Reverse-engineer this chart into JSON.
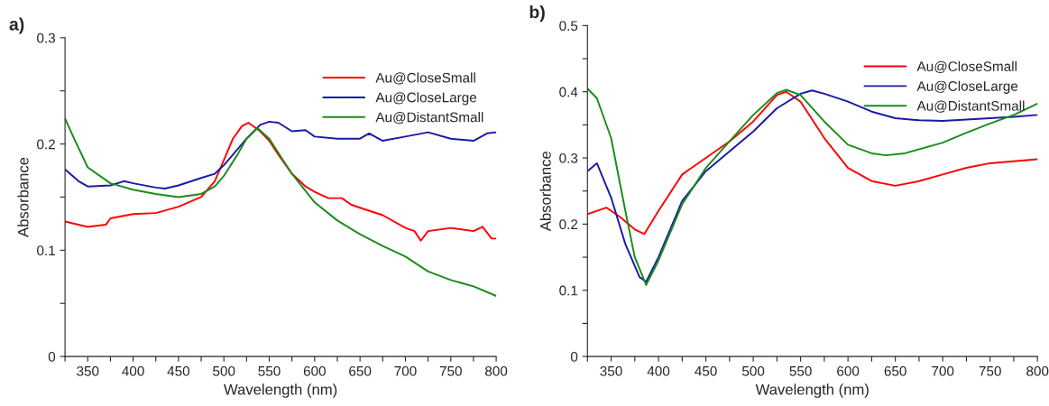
{
  "chart_data": [
    {
      "type": "line",
      "title": "a)",
      "xlabel": "Wavelength (nm)",
      "ylabel": "Absorbance",
      "xlim": [
        325,
        800
      ],
      "ylim": [
        0,
        0.3
      ],
      "xticks": [
        {
          "value": 325,
          "label": null
        },
        350,
        {
          "value": 375,
          "label": null
        },
        400,
        {
          "value": 425,
          "label": null
        },
        450,
        {
          "value": 475,
          "label": null
        },
        500,
        {
          "value": 525,
          "label": null
        },
        550,
        {
          "value": 575,
          "label": null
        },
        600,
        {
          "value": 625,
          "label": null
        },
        650,
        {
          "value": 675,
          "label": null
        },
        700,
        {
          "value": 725,
          "label": null
        },
        750,
        {
          "value": 775,
          "label": null
        },
        800
      ],
      "yticks": [
        0,
        {
          "value": 0.05,
          "label": null
        },
        0.1,
        {
          "value": 0.15,
          "label": null
        },
        0.2,
        {
          "value": 0.25,
          "label": null
        },
        0.3
      ],
      "grid": false,
      "legend": "top right",
      "line_style": "solid",
      "marker": "none",
      "series": [
        {
          "name": "Au@CloseSmall",
          "color": "#ff0000",
          "x": [
            325,
            350,
            370,
            375,
            400,
            425,
            450,
            475,
            490,
            500,
            510,
            520,
            527,
            540,
            550,
            560,
            575,
            590,
            600,
            615,
            630,
            640,
            650,
            675,
            700,
            710,
            717,
            725,
            750,
            775,
            785,
            795,
            800
          ],
          "values": [
            0.127,
            0.122,
            0.124,
            0.13,
            0.134,
            0.135,
            0.141,
            0.15,
            0.165,
            0.185,
            0.205,
            0.217,
            0.22,
            0.212,
            0.203,
            0.19,
            0.172,
            0.16,
            0.155,
            0.149,
            0.149,
            0.143,
            0.14,
            0.133,
            0.121,
            0.118,
            0.109,
            0.118,
            0.121,
            0.118,
            0.122,
            0.111,
            0.111
          ]
        },
        {
          "name": "Au@CloseLarge",
          "color": "#1a1aa6",
          "x": [
            325,
            340,
            350,
            375,
            390,
            400,
            425,
            435,
            450,
            475,
            490,
            500,
            510,
            525,
            540,
            550,
            560,
            575,
            590,
            600,
            625,
            650,
            660,
            675,
            700,
            725,
            750,
            775,
            790,
            800
          ],
          "values": [
            0.176,
            0.165,
            0.16,
            0.161,
            0.165,
            0.163,
            0.159,
            0.158,
            0.161,
            0.168,
            0.172,
            0.18,
            0.19,
            0.205,
            0.218,
            0.221,
            0.22,
            0.212,
            0.213,
            0.207,
            0.205,
            0.205,
            0.21,
            0.203,
            0.207,
            0.211,
            0.205,
            0.203,
            0.21,
            0.211
          ]
        },
        {
          "name": "Au@DistantSmall",
          "color": "#1a8c1a",
          "x": [
            325,
            335,
            350,
            375,
            400,
            425,
            450,
            475,
            490,
            500,
            515,
            525,
            537,
            550,
            565,
            575,
            600,
            625,
            650,
            675,
            700,
            725,
            750,
            775,
            800
          ],
          "values": [
            0.224,
            0.205,
            0.178,
            0.163,
            0.157,
            0.153,
            0.15,
            0.153,
            0.16,
            0.17,
            0.19,
            0.205,
            0.215,
            0.205,
            0.185,
            0.172,
            0.145,
            0.128,
            0.115,
            0.104,
            0.094,
            0.08,
            0.072,
            0.066,
            0.057
          ]
        }
      ]
    },
    {
      "type": "line",
      "title": "b)",
      "xlabel": "Wavelength (nm)",
      "ylabel": "Absorbance",
      "xlim": [
        325,
        800
      ],
      "ylim": [
        0,
        0.5
      ],
      "xticks": [
        {
          "value": 325,
          "label": null
        },
        350,
        {
          "value": 375,
          "label": null
        },
        400,
        {
          "value": 425,
          "label": null
        },
        450,
        {
          "value": 475,
          "label": null
        },
        500,
        {
          "value": 525,
          "label": null
        },
        550,
        {
          "value": 575,
          "label": null
        },
        600,
        {
          "value": 625,
          "label": null
        },
        650,
        {
          "value": 675,
          "label": null
        },
        700,
        {
          "value": 725,
          "label": null
        },
        750,
        {
          "value": 775,
          "label": null
        },
        800
      ],
      "yticks": [
        0,
        {
          "value": 0.05,
          "label": null
        },
        0.1,
        {
          "value": 0.15,
          "label": null
        },
        0.2,
        {
          "value": 0.25,
          "label": null
        },
        0.3,
        {
          "value": 0.35,
          "label": null
        },
        0.4,
        {
          "value": 0.45,
          "label": null
        },
        0.5
      ],
      "grid": false,
      "legend": "top right",
      "line_style": "solid",
      "marker": "none",
      "series": [
        {
          "name": "Au@CloseSmall",
          "color": "#ff0000",
          "x": [
            325,
            345,
            360,
            375,
            385,
            400,
            425,
            450,
            475,
            500,
            525,
            535,
            550,
            575,
            600,
            625,
            650,
            675,
            700,
            725,
            750,
            775,
            800
          ],
          "values": [
            0.215,
            0.225,
            0.21,
            0.192,
            0.185,
            0.22,
            0.275,
            0.3,
            0.325,
            0.355,
            0.395,
            0.4,
            0.385,
            0.33,
            0.285,
            0.265,
            0.258,
            0.265,
            0.275,
            0.285,
            0.292,
            0.295,
            0.298
          ]
        },
        {
          "name": "Au@CloseLarge",
          "color": "#1a1aa6",
          "x": [
            325,
            335,
            350,
            365,
            380,
            387,
            400,
            425,
            450,
            475,
            500,
            525,
            550,
            562,
            575,
            600,
            625,
            650,
            675,
            700,
            725,
            750,
            775,
            800
          ],
          "values": [
            0.28,
            0.292,
            0.24,
            0.17,
            0.12,
            0.113,
            0.15,
            0.235,
            0.28,
            0.31,
            0.34,
            0.375,
            0.397,
            0.402,
            0.397,
            0.385,
            0.37,
            0.36,
            0.357,
            0.356,
            0.358,
            0.36,
            0.362,
            0.365
          ]
        },
        {
          "name": "Au@DistantSmall",
          "color": "#1a8c1a",
          "x": [
            325,
            335,
            350,
            365,
            375,
            387,
            400,
            425,
            450,
            475,
            500,
            525,
            535,
            550,
            575,
            600,
            625,
            640,
            660,
            700,
            725,
            750,
            775,
            800
          ],
          "values": [
            0.405,
            0.39,
            0.33,
            0.22,
            0.15,
            0.108,
            0.145,
            0.23,
            0.285,
            0.325,
            0.365,
            0.398,
            0.403,
            0.395,
            0.355,
            0.32,
            0.307,
            0.304,
            0.307,
            0.323,
            0.338,
            0.352,
            0.365,
            0.382
          ]
        }
      ]
    }
  ]
}
